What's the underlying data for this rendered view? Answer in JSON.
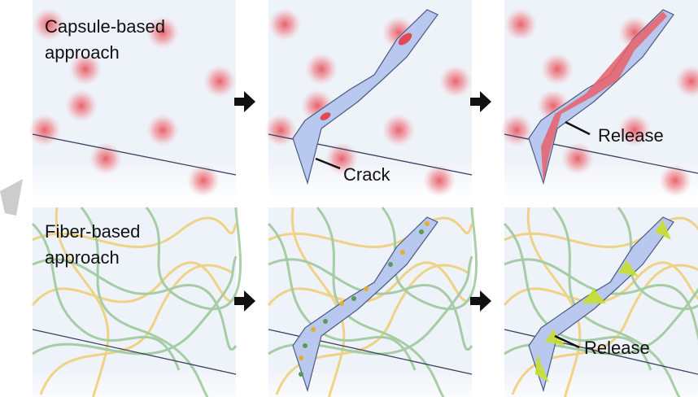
{
  "capsule_row": {
    "label": [
      "Capsule-based",
      "approach"
    ],
    "crack_label": "Crack",
    "release_label": "Release"
  },
  "fiber_row": {
    "label": [
      "Fiber-based",
      "approach"
    ],
    "release_label": "Release"
  }
}
